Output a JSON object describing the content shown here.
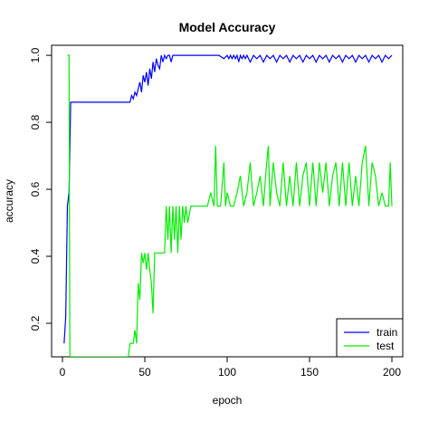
{
  "chart_data": {
    "type": "line",
    "title": "Model Accuracy",
    "xlabel": "epoch",
    "ylabel": "accuracy",
    "xlim": [
      0,
      200
    ],
    "ylim": [
      0.1,
      1.03
    ],
    "xticks": [
      "0",
      "50",
      "100",
      "150",
      "200"
    ],
    "yticks": [
      "0.2",
      "0.4",
      "0.6",
      "0.8",
      "1.0"
    ],
    "legend_position": "bottom-right",
    "series": [
      {
        "name": "train",
        "color": "#0000ff",
        "x": [
          1,
          2,
          3,
          4,
          5,
          6,
          10,
          20,
          30,
          40,
          41,
          42,
          43,
          44,
          45,
          46,
          47,
          48,
          49,
          50,
          51,
          52,
          53,
          54,
          55,
          56,
          57,
          58,
          59,
          60,
          61,
          62,
          63,
          64,
          65,
          66,
          67,
          68,
          70,
          75,
          80,
          85,
          90,
          95,
          98,
          100,
          101,
          102,
          103,
          104,
          105,
          106,
          107,
          108,
          109,
          110,
          111,
          112,
          114,
          116,
          118,
          120,
          122,
          124,
          126,
          128,
          130,
          132,
          134,
          136,
          138,
          140,
          142,
          144,
          146,
          148,
          150,
          152,
          154,
          156,
          158,
          160,
          162,
          164,
          166,
          168,
          170,
          172,
          174,
          176,
          178,
          180,
          182,
          184,
          186,
          188,
          190,
          192,
          194,
          196,
          198,
          200
        ],
        "y": [
          0.14,
          0.22,
          0.55,
          0.59,
          0.86,
          0.86,
          0.86,
          0.86,
          0.86,
          0.86,
          0.86,
          0.88,
          0.87,
          0.89,
          0.88,
          0.9,
          0.92,
          0.89,
          0.94,
          0.92,
          0.95,
          0.91,
          0.96,
          0.93,
          0.98,
          0.95,
          0.99,
          0.97,
          0.96,
          1.0,
          0.98,
          1.0,
          0.99,
          1.0,
          1.0,
          0.98,
          1.0,
          1.0,
          1.0,
          1.0,
          1.0,
          1.0,
          1.0,
          1.0,
          0.99,
          1.0,
          0.99,
          1.0,
          0.99,
          1.0,
          0.99,
          1.0,
          0.98,
          1.0,
          0.99,
          1.0,
          0.99,
          1.0,
          0.98,
          1.0,
          0.99,
          1.0,
          0.98,
          1.0,
          0.99,
          1.0,
          0.98,
          1.0,
          0.99,
          1.0,
          0.98,
          1.0,
          0.99,
          1.0,
          0.98,
          1.0,
          0.99,
          1.0,
          0.98,
          1.0,
          0.99,
          1.0,
          0.98,
          1.0,
          0.99,
          1.0,
          0.98,
          1.0,
          0.99,
          1.0,
          0.98,
          1.0,
          0.99,
          1.0,
          0.98,
          1.0,
          0.99,
          1.0,
          0.98,
          1.0,
          0.99,
          1.0
        ]
      },
      {
        "name": "test",
        "color": "#00ee00",
        "x": [
          3,
          4,
          4.5,
          40,
          41,
          43,
          44,
          45,
          46,
          47,
          48,
          49,
          50,
          51,
          52,
          53,
          54,
          55,
          56,
          57,
          58,
          60,
          62,
          63,
          64,
          65,
          66,
          67,
          68,
          69,
          70,
          71,
          72,
          73,
          74,
          75,
          76,
          78,
          80,
          82,
          84,
          86,
          88,
          90,
          92,
          93,
          94,
          96,
          98,
          99,
          100,
          102,
          104,
          106,
          108,
          110,
          112,
          114,
          116,
          118,
          120,
          122,
          124,
          125,
          126,
          128,
          130,
          132,
          134,
          136,
          138,
          140,
          142,
          144,
          146,
          148,
          150,
          152,
          154,
          156,
          158,
          160,
          162,
          164,
          166,
          168,
          170,
          172,
          174,
          176,
          178,
          180,
          182,
          184,
          186,
          188,
          190,
          192,
          194,
          196,
          198,
          199,
          200
        ],
        "y": [
          1.0,
          1.0,
          0.1,
          0.1,
          0.14,
          0.14,
          0.18,
          0.14,
          0.32,
          0.27,
          0.41,
          0.38,
          0.41,
          0.36,
          0.41,
          0.36,
          0.32,
          0.23,
          0.41,
          0.41,
          0.41,
          0.41,
          0.41,
          0.55,
          0.45,
          0.55,
          0.41,
          0.55,
          0.45,
          0.55,
          0.41,
          0.55,
          0.45,
          0.55,
          0.5,
          0.55,
          0.5,
          0.55,
          0.55,
          0.55,
          0.55,
          0.55,
          0.55,
          0.59,
          0.55,
          0.73,
          0.55,
          0.55,
          0.68,
          0.55,
          0.59,
          0.55,
          0.55,
          0.59,
          0.64,
          0.55,
          0.59,
          0.68,
          0.55,
          0.59,
          0.64,
          0.55,
          0.68,
          0.73,
          0.55,
          0.68,
          0.59,
          0.55,
          0.68,
          0.55,
          0.64,
          0.55,
          0.68,
          0.55,
          0.64,
          0.68,
          0.55,
          0.68,
          0.55,
          0.68,
          0.59,
          0.68,
          0.55,
          0.64,
          0.68,
          0.55,
          0.68,
          0.55,
          0.68,
          0.55,
          0.64,
          0.55,
          0.68,
          0.73,
          0.55,
          0.68,
          0.64,
          0.55,
          0.59,
          0.55,
          0.55,
          0.68,
          0.55
        ]
      }
    ]
  }
}
